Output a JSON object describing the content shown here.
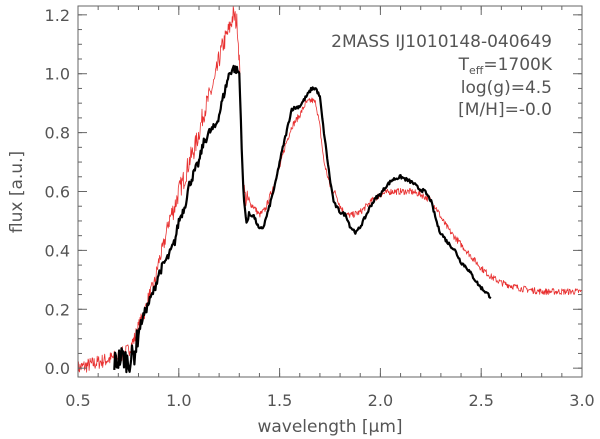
{
  "chart_data": {
    "type": "line",
    "xlabel_prefix": "wavelength [",
    "xlabel_unit": "μm",
    "xlabel_suffix": "]",
    "ylabel": "flux [a.u.]",
    "xlim": [
      0.5,
      3.0
    ],
    "ylim": [
      -0.03,
      1.23
    ],
    "x_ticks": [
      "0.5",
      "1.0",
      "1.5",
      "2.0",
      "2.5",
      "3.0"
    ],
    "y_ticks": [
      "0.0",
      "0.2",
      "0.4",
      "0.6",
      "0.8",
      "1.0",
      "1.2"
    ],
    "grid": false,
    "annotations": {
      "object": "2MASS IJ1010148-040649",
      "teff_prefix": "T",
      "teff_sub": "eff",
      "teff_value": "=1700K",
      "logg": "log(g)=4.5",
      "metallicity": "[M/H]=-0.0"
    },
    "series": [
      {
        "color": "#000000",
        "style": "thick-noisy",
        "x": [
          0.68,
          0.72,
          0.75,
          0.78,
          0.8,
          0.82,
          0.85,
          0.88,
          0.9,
          0.93,
          0.95,
          0.98,
          1.0,
          1.03,
          1.05,
          1.08,
          1.1,
          1.12,
          1.15,
          1.18,
          1.2,
          1.22,
          1.25,
          1.27,
          1.29,
          1.3,
          1.31,
          1.32,
          1.33,
          1.34,
          1.35,
          1.37,
          1.4,
          1.42,
          1.45,
          1.48,
          1.5,
          1.53,
          1.56,
          1.6,
          1.63,
          1.66,
          1.68,
          1.7,
          1.72,
          1.75,
          1.77,
          1.8,
          1.83,
          1.85,
          1.88,
          1.9,
          1.93,
          1.95,
          1.98,
          2.0,
          2.03,
          2.06,
          2.1,
          2.13,
          2.16,
          2.19,
          2.22,
          2.25,
          2.27,
          2.29,
          2.3,
          2.33,
          2.37,
          2.4,
          2.43,
          2.46,
          2.49,
          2.52,
          2.55
        ],
        "y": [
          0.02,
          0.04,
          0.02,
          0.05,
          0.12,
          0.17,
          0.22,
          0.27,
          0.32,
          0.36,
          0.38,
          0.43,
          0.5,
          0.55,
          0.62,
          0.67,
          0.7,
          0.76,
          0.8,
          0.82,
          0.86,
          0.92,
          1.0,
          1.02,
          1.01,
          1.0,
          0.8,
          0.6,
          0.52,
          0.5,
          0.52,
          0.52,
          0.47,
          0.48,
          0.55,
          0.63,
          0.7,
          0.79,
          0.88,
          0.89,
          0.92,
          0.95,
          0.95,
          0.92,
          0.8,
          0.64,
          0.56,
          0.53,
          0.52,
          0.48,
          0.46,
          0.48,
          0.52,
          0.55,
          0.58,
          0.59,
          0.62,
          0.64,
          0.65,
          0.64,
          0.63,
          0.61,
          0.6,
          0.57,
          0.52,
          0.47,
          0.46,
          0.43,
          0.4,
          0.36,
          0.34,
          0.31,
          0.28,
          0.26,
          0.24
        ]
      },
      {
        "color": "#e83030",
        "style": "thin-noisy",
        "x": [
          0.5,
          0.55,
          0.6,
          0.65,
          0.7,
          0.75,
          0.78,
          0.8,
          0.83,
          0.85,
          0.88,
          0.9,
          0.93,
          0.95,
          0.98,
          1.0,
          1.03,
          1.05,
          1.08,
          1.1,
          1.12,
          1.15,
          1.18,
          1.2,
          1.22,
          1.25,
          1.27,
          1.29,
          1.3,
          1.31,
          1.32,
          1.33,
          1.35,
          1.37,
          1.4,
          1.43,
          1.46,
          1.5,
          1.53,
          1.56,
          1.6,
          1.63,
          1.66,
          1.68,
          1.7,
          1.72,
          1.75,
          1.78,
          1.8,
          1.83,
          1.86,
          1.9,
          1.93,
          1.96,
          2.0,
          2.05,
          2.1,
          2.15,
          2.2,
          2.25,
          2.28,
          2.31,
          2.35,
          2.4,
          2.45,
          2.5,
          2.55,
          2.6,
          2.65,
          2.7,
          2.8,
          2.9,
          3.0
        ],
        "y": [
          0.0,
          0.01,
          0.02,
          0.03,
          0.04,
          0.06,
          0.1,
          0.14,
          0.19,
          0.24,
          0.29,
          0.36,
          0.43,
          0.5,
          0.55,
          0.6,
          0.65,
          0.7,
          0.75,
          0.8,
          0.86,
          0.92,
          0.98,
          1.05,
          1.1,
          1.15,
          1.2,
          1.17,
          1.05,
          0.8,
          0.62,
          0.58,
          0.56,
          0.55,
          0.52,
          0.54,
          0.6,
          0.68,
          0.76,
          0.82,
          0.86,
          0.9,
          0.91,
          0.9,
          0.82,
          0.7,
          0.62,
          0.59,
          0.55,
          0.52,
          0.52,
          0.53,
          0.55,
          0.57,
          0.59,
          0.6,
          0.6,
          0.6,
          0.59,
          0.57,
          0.54,
          0.5,
          0.46,
          0.42,
          0.38,
          0.34,
          0.31,
          0.29,
          0.28,
          0.27,
          0.26,
          0.26,
          0.26
        ]
      }
    ]
  }
}
